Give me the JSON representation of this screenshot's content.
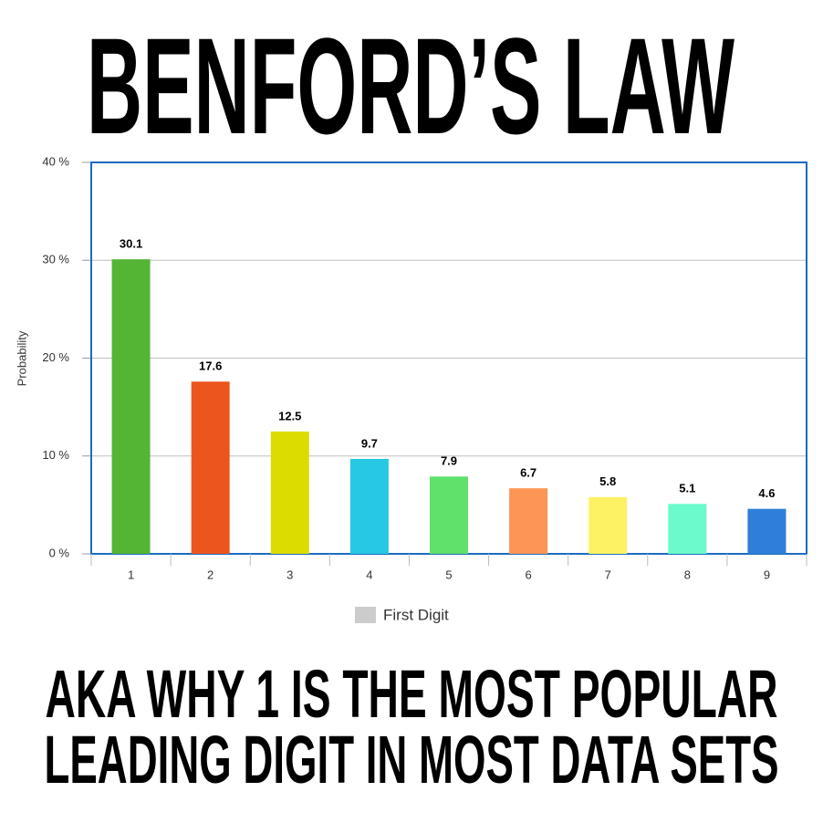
{
  "chart_data": {
    "type": "bar",
    "title": "BENFORD’S LAW",
    "annotations": [
      "AKA WHY 1 IS THE MOST POPULAR",
      "LEADING DIGIT IN MOST DATA SETS"
    ],
    "y_label": "Probability",
    "categories": [
      "1",
      "2",
      "3",
      "4",
      "5",
      "6",
      "7",
      "8",
      "9"
    ],
    "series": [
      {
        "name": "First Digit",
        "color": "#cccccc",
        "values": [
          30.1,
          17.6,
          12.5,
          9.7,
          7.9,
          6.7,
          5.8,
          5.1,
          4.6
        ]
      }
    ],
    "bar_colors": [
      "#54b434",
      "#ec561e",
      "#dcdc00",
      "#27c8e3",
      "#5fe16b",
      "#fd9555",
      "#fdf263",
      "#6bfacb",
      "#2f7ed8"
    ],
    "ylim": [
      0,
      40
    ],
    "yticks": [
      {
        "value": 0,
        "label": "0 %"
      },
      {
        "value": 10,
        "label": "10 %"
      },
      {
        "value": 20,
        "label": "20 %"
      },
      {
        "value": 30,
        "label": "30 %"
      },
      {
        "value": 40,
        "label": "40 %"
      }
    ],
    "grid": true,
    "legend": "bottom"
  }
}
